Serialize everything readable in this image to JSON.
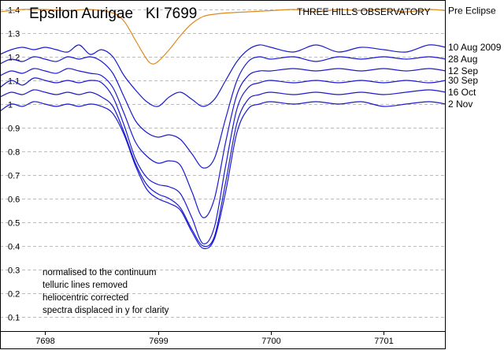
{
  "chart_data": {
    "type": "line",
    "title": "Epsilon Aurigae   KI 7699",
    "subtitle": "THREE HILLS OBSERVATORY",
    "xlabel": "",
    "ylabel": "",
    "xlim": [
      7697.6,
      7701.55
    ],
    "ylim": [
      0.04,
      1.44
    ],
    "x_ticks": [
      7698,
      7699,
      7700,
      7701
    ],
    "x_tick_labels": [
      "7698",
      "7699",
      "7700",
      "7701"
    ],
    "y_ticks": [
      0.1,
      0.2,
      0.3,
      0.4,
      0.5,
      0.6,
      0.7,
      0.8,
      0.9,
      1.0,
      1.1,
      1.2,
      1.3,
      1.4
    ],
    "y_tick_labels": [
      "0.1",
      "0.2",
      "0.3",
      "0.4",
      "0.5",
      "0.6",
      "0.7",
      "0.8",
      "0.9",
      "1",
      "1.1",
      "1.2",
      "1.3",
      "1.4"
    ],
    "grid": true,
    "annotations": [
      "normalised to the continuum",
      "telluric lines removed",
      "heliocentric corrected",
      "spectra displaced in y for clarity"
    ],
    "series": [
      {
        "name": "Pre Eclipse",
        "color": "#e08a1e",
        "x": [
          7697.6,
          7697.8,
          7698.0,
          7698.2,
          7698.4,
          7698.6,
          7698.7,
          7698.8,
          7698.9,
          7698.95,
          7699.0,
          7699.1,
          7699.2,
          7699.3,
          7699.4,
          7699.5,
          7699.6,
          7699.8,
          7700.0,
          7700.2,
          7700.4,
          7700.6,
          7700.8,
          7701.0,
          7701.2,
          7701.4,
          7701.55
        ],
        "y": [
          1.39,
          1.4,
          1.4,
          1.395,
          1.4,
          1.385,
          1.35,
          1.27,
          1.19,
          1.17,
          1.18,
          1.23,
          1.29,
          1.34,
          1.37,
          1.38,
          1.385,
          1.39,
          1.395,
          1.4,
          1.39,
          1.4,
          1.395,
          1.4,
          1.39,
          1.4,
          1.395
        ]
      },
      {
        "name": "10 Aug 2009",
        "color": "#1a1ad0",
        "x": [
          7697.6,
          7697.7,
          7697.8,
          7697.9,
          7698.0,
          7698.1,
          7698.2,
          7698.3,
          7698.4,
          7698.5,
          7698.6,
          7698.7,
          7698.8,
          7698.9,
          7699.0,
          7699.1,
          7699.2,
          7699.3,
          7699.4,
          7699.5,
          7699.6,
          7699.7,
          7699.8,
          7699.9,
          7700.0,
          7700.2,
          7700.4,
          7700.6,
          7700.8,
          7701.0,
          7701.2,
          7701.4,
          7701.55
        ],
        "y": [
          1.21,
          1.23,
          1.24,
          1.23,
          1.24,
          1.23,
          1.22,
          1.25,
          1.21,
          1.23,
          1.2,
          1.12,
          1.06,
          1.01,
          0.99,
          1.03,
          1.05,
          1.02,
          0.99,
          1.02,
          1.1,
          1.18,
          1.23,
          1.25,
          1.24,
          1.22,
          1.25,
          1.22,
          1.24,
          1.23,
          1.22,
          1.25,
          1.24
        ]
      },
      {
        "name": "28 Aug",
        "color": "#1a1ad0",
        "x": [
          7697.6,
          7697.7,
          7697.8,
          7697.9,
          7698.0,
          7698.1,
          7698.2,
          7698.3,
          7698.4,
          7698.5,
          7698.6,
          7698.7,
          7698.8,
          7698.9,
          7699.0,
          7699.1,
          7699.2,
          7699.3,
          7699.4,
          7699.5,
          7699.6,
          7699.7,
          7699.8,
          7699.9,
          7700.0,
          7700.2,
          7700.4,
          7700.6,
          7700.8,
          7701.0,
          7701.2,
          7701.4,
          7701.55
        ],
        "y": [
          1.17,
          1.19,
          1.18,
          1.2,
          1.19,
          1.18,
          1.2,
          1.19,
          1.2,
          1.18,
          1.13,
          1.03,
          0.93,
          0.88,
          0.86,
          0.87,
          0.85,
          0.79,
          0.73,
          0.77,
          0.94,
          1.1,
          1.18,
          1.2,
          1.19,
          1.2,
          1.18,
          1.2,
          1.19,
          1.2,
          1.19,
          1.2,
          1.19
        ]
      },
      {
        "name": "12 Sep",
        "color": "#1a1ad0",
        "x": [
          7697.6,
          7697.7,
          7697.8,
          7697.9,
          7698.0,
          7698.1,
          7698.2,
          7698.3,
          7698.4,
          7698.5,
          7698.6,
          7698.7,
          7698.8,
          7698.9,
          7699.0,
          7699.1,
          7699.2,
          7699.3,
          7699.4,
          7699.5,
          7699.6,
          7699.7,
          7699.8,
          7699.9,
          7700.0,
          7700.2,
          7700.4,
          7700.6,
          7700.8,
          7701.0,
          7701.2,
          7701.4,
          7701.55
        ],
        "y": [
          1.12,
          1.14,
          1.13,
          1.15,
          1.14,
          1.13,
          1.15,
          1.14,
          1.13,
          1.12,
          1.07,
          0.96,
          0.84,
          0.78,
          0.75,
          0.76,
          0.74,
          0.63,
          0.52,
          0.6,
          0.84,
          1.04,
          1.12,
          1.14,
          1.14,
          1.15,
          1.14,
          1.15,
          1.14,
          1.15,
          1.14,
          1.15,
          1.14
        ]
      },
      {
        "name": "30 Sep",
        "color": "#1a1ad0",
        "x": [
          7697.6,
          7697.7,
          7697.8,
          7697.9,
          7698.0,
          7698.1,
          7698.2,
          7698.3,
          7698.4,
          7698.5,
          7698.6,
          7698.7,
          7698.8,
          7698.9,
          7699.0,
          7699.1,
          7699.2,
          7699.3,
          7699.4,
          7699.5,
          7699.6,
          7699.7,
          7699.8,
          7699.9,
          7700.0,
          7700.2,
          7700.4,
          7700.6,
          7700.8,
          7701.0,
          7701.2,
          7701.4,
          7701.55
        ],
        "y": [
          1.07,
          1.1,
          1.08,
          1.11,
          1.1,
          1.09,
          1.1,
          1.09,
          1.1,
          1.09,
          1.03,
          0.91,
          0.77,
          0.69,
          0.66,
          0.65,
          0.62,
          0.52,
          0.41,
          0.48,
          0.74,
          0.98,
          1.07,
          1.09,
          1.1,
          1.09,
          1.1,
          1.09,
          1.1,
          1.09,
          1.1,
          1.09,
          1.1
        ]
      },
      {
        "name": "16 Oct",
        "color": "#1a1ad0",
        "x": [
          7697.6,
          7697.7,
          7697.8,
          7697.9,
          7698.0,
          7698.1,
          7698.2,
          7698.3,
          7698.4,
          7698.5,
          7698.6,
          7698.7,
          7698.8,
          7698.9,
          7699.0,
          7699.1,
          7699.2,
          7699.3,
          7699.4,
          7699.5,
          7699.6,
          7699.7,
          7699.8,
          7699.9,
          7700.0,
          7700.2,
          7700.4,
          7700.6,
          7700.8,
          7701.0,
          7701.2,
          7701.4,
          7701.55
        ],
        "y": [
          1.03,
          1.05,
          1.04,
          1.06,
          1.05,
          1.04,
          1.05,
          1.04,
          1.05,
          1.03,
          0.99,
          0.88,
          0.75,
          0.66,
          0.62,
          0.6,
          0.56,
          0.47,
          0.4,
          0.44,
          0.67,
          0.92,
          1.02,
          1.04,
          1.05,
          1.04,
          1.05,
          1.04,
          1.05,
          1.04,
          1.05,
          1.06,
          1.05
        ]
      },
      {
        "name": "2 Nov",
        "color": "#1a1ad0",
        "x": [
          7697.6,
          7697.7,
          7697.8,
          7697.9,
          7698.0,
          7698.1,
          7698.2,
          7698.3,
          7698.4,
          7698.5,
          7698.6,
          7698.7,
          7698.8,
          7698.9,
          7699.0,
          7699.1,
          7699.2,
          7699.3,
          7699.4,
          7699.5,
          7699.6,
          7699.7,
          7699.8,
          7699.9,
          7700.0,
          7700.2,
          7700.4,
          7700.6,
          7700.8,
          7701.0,
          7701.2,
          7701.4,
          7701.55
        ],
        "y": [
          0.97,
          1.0,
          0.99,
          1.01,
          1.0,
          0.99,
          1.0,
          0.99,
          1.0,
          0.99,
          0.96,
          0.87,
          0.74,
          0.64,
          0.6,
          0.58,
          0.55,
          0.46,
          0.39,
          0.43,
          0.63,
          0.88,
          0.98,
          1.0,
          1.01,
          1.0,
          1.01,
          1.0,
          1.01,
          0.99,
          1.0,
          1.01,
          1.0
        ]
      }
    ]
  }
}
